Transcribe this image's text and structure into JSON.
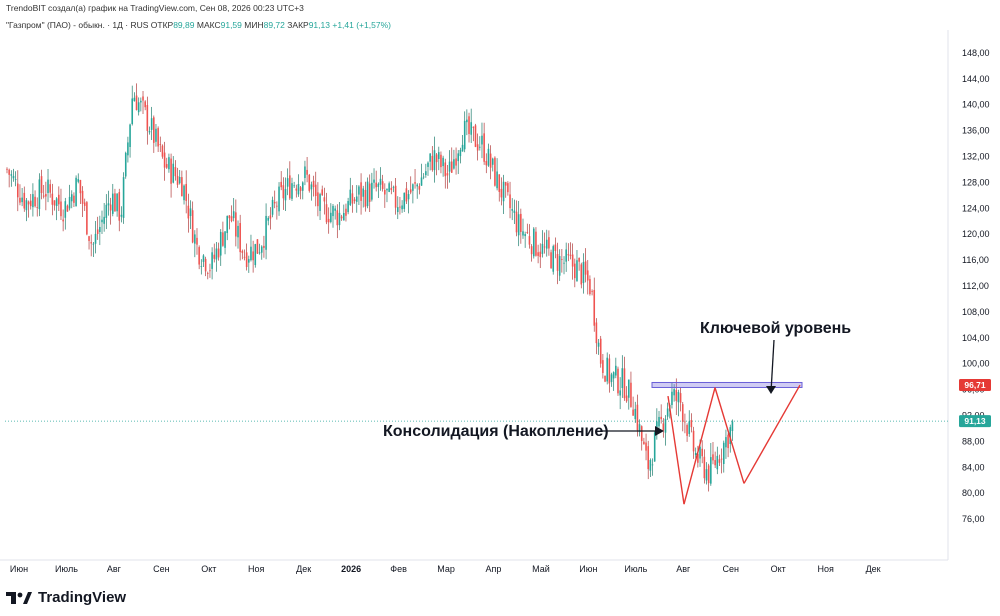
{
  "header": {
    "text": "TrendoBIT создал(а) график на TradingView.com, Сен 08, 2026 00:23 UTC+3"
  },
  "symbol": {
    "name": "\"Газпром\" (ПАО) - обыкн. · 1Д · RUS",
    "open_label": "ОТКР",
    "open": "89,89",
    "high_label": "МАКС",
    "high": "91,59",
    "low_label": "МИН",
    "low": "89,72",
    "close_label": "ЗАКР",
    "close": "91,13",
    "change": "+1,41 (+1,57%)"
  },
  "brand": {
    "name": "TradingView"
  },
  "chart_data": {
    "type": "candlestick",
    "y_ticks": [
      "76,00",
      "80,00",
      "84,00",
      "88,00",
      "92,00",
      "96,00",
      "100,00",
      "104,00",
      "108,00",
      "112,00",
      "116,00",
      "120,00",
      "124,00",
      "128,00",
      "132,00",
      "136,00",
      "140,00",
      "144,00",
      "148,00"
    ],
    "x_ticks": [
      "Июн",
      "Июль",
      "Авг",
      "Сен",
      "Окт",
      "Ноя",
      "Дек",
      "2026",
      "Фев",
      "Мар",
      "Апр",
      "Май",
      "Июн",
      "Июль",
      "Авг",
      "Сен",
      "Окт",
      "Ноя",
      "Дек"
    ],
    "ylim": [
      73,
      150
    ],
    "price_tags": [
      {
        "value": 96.71,
        "label": "96,71",
        "color": "#e53935"
      },
      {
        "value": 91.13,
        "label": "91,13",
        "color": "#26a69a"
      }
    ],
    "close_path": [
      {
        "x": 0,
        "y": 130
      },
      {
        "x": 0.4,
        "y": 125
      },
      {
        "x": 0.8,
        "y": 127
      },
      {
        "x": 1.2,
        "y": 124
      },
      {
        "x": 1.5,
        "y": 128
      },
      {
        "x": 1.8,
        "y": 118
      },
      {
        "x": 2.2,
        "y": 126
      },
      {
        "x": 2.4,
        "y": 123
      },
      {
        "x": 2.65,
        "y": 142
      },
      {
        "x": 3,
        "y": 137
      },
      {
        "x": 3.3,
        "y": 131
      },
      {
        "x": 3.7,
        "y": 128
      },
      {
        "x": 4,
        "y": 118
      },
      {
        "x": 4.3,
        "y": 115
      },
      {
        "x": 4.7,
        "y": 123
      },
      {
        "x": 5,
        "y": 117
      },
      {
        "x": 5.3,
        "y": 118
      },
      {
        "x": 5.7,
        "y": 125
      },
      {
        "x": 6,
        "y": 128
      },
      {
        "x": 6.3,
        "y": 129
      },
      {
        "x": 6.6,
        "y": 124
      },
      {
        "x": 7,
        "y": 123
      },
      {
        "x": 7.4,
        "y": 126
      },
      {
        "x": 7.8,
        "y": 127
      },
      {
        "x": 8.2,
        "y": 125
      },
      {
        "x": 8.6,
        "y": 127
      },
      {
        "x": 9,
        "y": 132
      },
      {
        "x": 9.3,
        "y": 129
      },
      {
        "x": 9.6,
        "y": 136
      },
      {
        "x": 10,
        "y": 134
      },
      {
        "x": 10.4,
        "y": 127
      },
      {
        "x": 10.8,
        "y": 121
      },
      {
        "x": 11.2,
        "y": 118
      },
      {
        "x": 11.6,
        "y": 116
      },
      {
        "x": 12,
        "y": 115
      },
      {
        "x": 12.3,
        "y": 112
      },
      {
        "x": 12.5,
        "y": 101
      },
      {
        "x": 12.7,
        "y": 98
      },
      {
        "x": 13,
        "y": 97
      },
      {
        "x": 13.2,
        "y": 94
      },
      {
        "x": 13.5,
        "y": 84
      },
      {
        "x": 13.7,
        "y": 89
      },
      {
        "x": 14,
        "y": 95
      },
      {
        "x": 14.2,
        "y": 94
      },
      {
        "x": 14.5,
        "y": 86
      },
      {
        "x": 14.8,
        "y": 83
      },
      {
        "x": 15,
        "y": 86
      },
      {
        "x": 15.2,
        "y": 89
      },
      {
        "x": 15.33,
        "y": 91.13
      }
    ],
    "annotations": [
      {
        "text": "Ключевой уровень",
        "target": 96.71
      },
      {
        "text": "Консолидация (Накопление)",
        "target": 91.13
      }
    ],
    "key_level": 96.71,
    "current_price": 91.13
  }
}
